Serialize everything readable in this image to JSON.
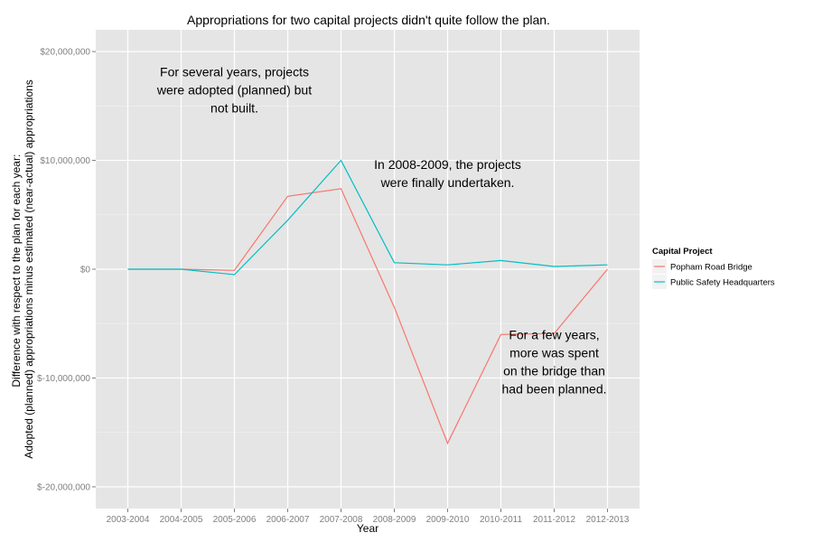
{
  "chart_data": {
    "type": "line",
    "title": "Appropriations for two capital projects didn't quite follow the plan.",
    "xlabel": "Year",
    "ylabel": [
      "Difference with respect to the plan for each year:",
      "Adopted (planned) appropriations minus estimated (near-actual) appropriations"
    ],
    "categories": [
      "2003-2004",
      "2004-2005",
      "2005-2006",
      "2006-2007",
      "2007-2008",
      "2008-2009",
      "2009-2010",
      "2010-2011",
      "2011-2012",
      "2012-2013"
    ],
    "ylim": [
      -22000000,
      22000000
    ],
    "yticks": [
      -20000000,
      -10000000,
      0,
      10000000,
      20000000
    ],
    "ytick_labels": [
      "$-20,000,000",
      "$-10,000,000",
      "$0",
      "$10,000,000",
      "$20,000,000"
    ],
    "grid": true,
    "legend": {
      "title": "Capital Project",
      "placement": "right"
    },
    "series": [
      {
        "name": "Popham Road Bridge",
        "color": "#f8766d",
        "values": [
          0,
          0,
          -100000,
          6700000,
          7400000,
          -3500000,
          -16000000,
          -6000000,
          -5900000,
          0
        ]
      },
      {
        "name": "Public Safety Headquarters",
        "color": "#00bfc4",
        "values": [
          0,
          0,
          -500000,
          4500000,
          10000000,
          600000,
          400000,
          800000,
          250000,
          400000
        ]
      }
    ],
    "annotations": [
      {
        "lines": [
          "For several years, projects",
          "were adopted (planned) but",
          "not built."
        ],
        "x_index": 2.0,
        "y": 16500000
      },
      {
        "lines": [
          "In 2008-2009, the projects",
          "were finally undertaken."
        ],
        "x_index": 6.0,
        "y": 8800000
      },
      {
        "lines": [
          "For a few years,",
          "more was spent",
          "on the bridge than",
          "had been planned."
        ],
        "x_index": 8.0,
        "y": -8500000
      }
    ]
  }
}
